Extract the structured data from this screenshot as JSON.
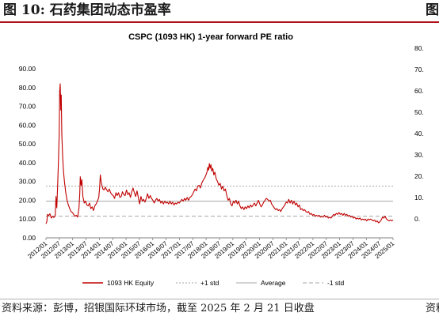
{
  "figure": {
    "title": "图 10: 石药集团动态市盈率",
    "source": "资料来源：彭博，招银国际环球市场，截至 2025 年 2 月 21 日收盘",
    "neighbor_title_fragment": "图",
    "neighbor_source_fragment": "资料"
  },
  "chart_data": {
    "type": "line",
    "title": "CSPC (1093 HK) 1-year forward PE ratio",
    "ylim": [
      0,
      90
    ],
    "y_ticks": [
      "0.00",
      "10.00",
      "20.00",
      "30.00",
      "40.00",
      "50.00",
      "60.00",
      "70.00",
      "80.00",
      "90.00"
    ],
    "x_ticks": [
      "2012/01",
      "2012/07",
      "2013/01",
      "2013/07",
      "2014/01",
      "2014/07",
      "2015/01",
      "2015/07",
      "2016/01",
      "2016/07",
      "2017/01",
      "2017/07",
      "2018/01",
      "2018/07",
      "2019/01",
      "2019/07",
      "2020/01",
      "2020/07",
      "2021/01",
      "2021/07",
      "2022/01",
      "2022/07",
      "2023/01",
      "2023/07",
      "2024/01",
      "2024/07",
      "2025/01"
    ],
    "x_range": [
      2012.0,
      2025.15
    ],
    "grid": false,
    "legend_position": "bottom",
    "series": [
      {
        "name": "1093 HK Equity",
        "color": "#c00000",
        "style": "solid",
        "points": [
          [
            2012.0,
            7.5
          ],
          [
            2012.03,
            8.5
          ],
          [
            2012.06,
            12.5
          ],
          [
            2012.1,
            11.8
          ],
          [
            2012.15,
            12.8
          ],
          [
            2012.2,
            10.5
          ],
          [
            2012.25,
            11.5
          ],
          [
            2012.3,
            10.8
          ],
          [
            2012.35,
            12.0
          ],
          [
            2012.38,
            22.0
          ],
          [
            2012.41,
            16.0
          ],
          [
            2012.44,
            27.5
          ],
          [
            2012.47,
            40.0
          ],
          [
            2012.5,
            55.0
          ],
          [
            2012.52,
            78.0
          ],
          [
            2012.54,
            82.0
          ],
          [
            2012.56,
            68.0
          ],
          [
            2012.58,
            76.0
          ],
          [
            2012.6,
            55.0
          ],
          [
            2012.63,
            44.0
          ],
          [
            2012.66,
            36.0
          ],
          [
            2012.7,
            30.0
          ],
          [
            2012.75,
            24.0
          ],
          [
            2012.8,
            20.0
          ],
          [
            2012.85,
            17.5
          ],
          [
            2012.9,
            15.5
          ],
          [
            2012.95,
            14.0
          ],
          [
            2013.0,
            13.5
          ],
          [
            2013.05,
            12.5
          ],
          [
            2013.1,
            11.5
          ],
          [
            2013.15,
            12.0
          ],
          [
            2013.2,
            11.0
          ],
          [
            2013.25,
            15.5
          ],
          [
            2013.28,
            23.0
          ],
          [
            2013.3,
            32.5
          ],
          [
            2013.33,
            28.0
          ],
          [
            2013.36,
            31.0
          ],
          [
            2013.4,
            22.0
          ],
          [
            2013.45,
            18.5
          ],
          [
            2013.5,
            19.5
          ],
          [
            2013.55,
            17.5
          ],
          [
            2013.6,
            17.0
          ],
          [
            2013.65,
            18.5
          ],
          [
            2013.7,
            15.5
          ],
          [
            2013.75,
            16.5
          ],
          [
            2013.8,
            14.5
          ],
          [
            2013.85,
            17.0
          ],
          [
            2013.9,
            18.0
          ],
          [
            2013.95,
            19.5
          ],
          [
            2014.0,
            21.5
          ],
          [
            2014.03,
            26.0
          ],
          [
            2014.06,
            33.5
          ],
          [
            2014.09,
            30.0
          ],
          [
            2014.12,
            28.0
          ],
          [
            2014.16,
            26.0
          ],
          [
            2014.2,
            25.5
          ],
          [
            2014.25,
            27.0
          ],
          [
            2014.3,
            25.5
          ],
          [
            2014.35,
            24.5
          ],
          [
            2014.4,
            26.0
          ],
          [
            2014.45,
            24.0
          ],
          [
            2014.5,
            23.0
          ],
          [
            2014.55,
            22.5
          ],
          [
            2014.6,
            21.0
          ],
          [
            2014.65,
            24.0
          ],
          [
            2014.7,
            22.5
          ],
          [
            2014.75,
            24.0
          ],
          [
            2014.8,
            21.5
          ],
          [
            2014.85,
            22.0
          ],
          [
            2014.9,
            24.5
          ],
          [
            2014.95,
            23.0
          ],
          [
            2015.0,
            22.5
          ],
          [
            2015.05,
            25.5
          ],
          [
            2015.1,
            23.0
          ],
          [
            2015.15,
            24.0
          ],
          [
            2015.2,
            21.5
          ],
          [
            2015.25,
            24.5
          ],
          [
            2015.3,
            26.5
          ],
          [
            2015.35,
            24.0
          ],
          [
            2015.4,
            22.0
          ],
          [
            2015.45,
            25.0
          ],
          [
            2015.5,
            21.5
          ],
          [
            2015.55,
            18.0
          ],
          [
            2015.6,
            22.0
          ],
          [
            2015.65,
            19.5
          ],
          [
            2015.7,
            20.5
          ],
          [
            2015.75,
            19.0
          ],
          [
            2015.8,
            21.0
          ],
          [
            2015.85,
            23.5
          ],
          [
            2015.9,
            21.0
          ],
          [
            2015.95,
            22.5
          ],
          [
            2016.0,
            21.0
          ],
          [
            2016.05,
            20.0
          ],
          [
            2016.1,
            18.5
          ],
          [
            2016.15,
            20.0
          ],
          [
            2016.2,
            21.0
          ],
          [
            2016.25,
            19.5
          ],
          [
            2016.3,
            20.5
          ],
          [
            2016.35,
            18.5
          ],
          [
            2016.4,
            19.5
          ],
          [
            2016.45,
            18.0
          ],
          [
            2016.5,
            19.5
          ],
          [
            2016.55,
            18.5
          ],
          [
            2016.6,
            19.0
          ],
          [
            2016.65,
            18.0
          ],
          [
            2016.7,
            19.5
          ],
          [
            2016.75,
            18.0
          ],
          [
            2016.8,
            19.0
          ],
          [
            2016.85,
            17.5
          ],
          [
            2016.9,
            18.5
          ],
          [
            2016.95,
            18.0
          ],
          [
            2017.0,
            19.0
          ],
          [
            2017.05,
            18.5
          ],
          [
            2017.1,
            19.5
          ],
          [
            2017.15,
            20.5
          ],
          [
            2017.2,
            19.5
          ],
          [
            2017.25,
            21.0
          ],
          [
            2017.3,
            20.0
          ],
          [
            2017.35,
            21.5
          ],
          [
            2017.4,
            20.0
          ],
          [
            2017.45,
            21.5
          ],
          [
            2017.5,
            22.0
          ],
          [
            2017.55,
            23.0
          ],
          [
            2017.6,
            24.5
          ],
          [
            2017.65,
            26.0
          ],
          [
            2017.7,
            25.0
          ],
          [
            2017.75,
            27.5
          ],
          [
            2017.8,
            28.0
          ],
          [
            2017.85,
            26.5
          ],
          [
            2017.9,
            29.0
          ],
          [
            2017.95,
            30.5
          ],
          [
            2018.0,
            31.5
          ],
          [
            2018.05,
            33.0
          ],
          [
            2018.1,
            35.0
          ],
          [
            2018.13,
            37.5
          ],
          [
            2018.16,
            36.0
          ],
          [
            2018.19,
            39.5
          ],
          [
            2018.22,
            37.0
          ],
          [
            2018.25,
            39.0
          ],
          [
            2018.28,
            35.5
          ],
          [
            2018.32,
            37.0
          ],
          [
            2018.36,
            33.5
          ],
          [
            2018.4,
            35.0
          ],
          [
            2018.45,
            31.5
          ],
          [
            2018.5,
            30.0
          ],
          [
            2018.55,
            28.0
          ],
          [
            2018.6,
            29.0
          ],
          [
            2018.65,
            26.0
          ],
          [
            2018.7,
            27.5
          ],
          [
            2018.75,
            25.0
          ],
          [
            2018.8,
            26.0
          ],
          [
            2018.85,
            22.5
          ],
          [
            2018.9,
            20.0
          ],
          [
            2018.95,
            21.0
          ],
          [
            2019.0,
            18.0
          ],
          [
            2019.05,
            17.0
          ],
          [
            2019.1,
            19.5
          ],
          [
            2019.15,
            18.5
          ],
          [
            2019.2,
            20.0
          ],
          [
            2019.25,
            18.0
          ],
          [
            2019.3,
            19.5
          ],
          [
            2019.35,
            17.0
          ],
          [
            2019.4,
            15.5
          ],
          [
            2019.45,
            16.5
          ],
          [
            2019.5,
            15.0
          ],
          [
            2019.55,
            16.5
          ],
          [
            2019.6,
            15.5
          ],
          [
            2019.65,
            17.0
          ],
          [
            2019.7,
            16.0
          ],
          [
            2019.75,
            17.5
          ],
          [
            2019.8,
            16.5
          ],
          [
            2019.85,
            17.5
          ],
          [
            2019.9,
            18.5
          ],
          [
            2019.95,
            17.0
          ],
          [
            2020.0,
            18.5
          ],
          [
            2020.05,
            20.0
          ],
          [
            2020.1,
            18.0
          ],
          [
            2020.15,
            16.5
          ],
          [
            2020.2,
            17.5
          ],
          [
            2020.25,
            19.0
          ],
          [
            2020.3,
            20.0
          ],
          [
            2020.35,
            21.0
          ],
          [
            2020.4,
            20.5
          ],
          [
            2020.45,
            19.5
          ],
          [
            2020.5,
            20.0
          ],
          [
            2020.55,
            18.0
          ],
          [
            2020.6,
            17.0
          ],
          [
            2020.65,
            16.0
          ],
          [
            2020.7,
            15.0
          ],
          [
            2020.75,
            15.5
          ],
          [
            2020.8,
            14.5
          ],
          [
            2020.85,
            15.0
          ],
          [
            2020.9,
            14.0
          ],
          [
            2020.95,
            15.5
          ],
          [
            2021.0,
            16.5
          ],
          [
            2021.05,
            17.5
          ],
          [
            2021.1,
            19.0
          ],
          [
            2021.15,
            18.5
          ],
          [
            2021.2,
            20.5
          ],
          [
            2021.25,
            18.5
          ],
          [
            2021.3,
            20.0
          ],
          [
            2021.35,
            18.0
          ],
          [
            2021.4,
            19.5
          ],
          [
            2021.45,
            17.5
          ],
          [
            2021.5,
            18.5
          ],
          [
            2021.55,
            16.5
          ],
          [
            2021.6,
            17.5
          ],
          [
            2021.65,
            15.0
          ],
          [
            2021.7,
            15.5
          ],
          [
            2021.75,
            14.5
          ],
          [
            2021.8,
            15.0
          ],
          [
            2021.85,
            14.0
          ],
          [
            2021.9,
            13.5
          ],
          [
            2021.95,
            14.0
          ],
          [
            2022.0,
            12.5
          ],
          [
            2022.05,
            13.0
          ],
          [
            2022.1,
            12.0
          ],
          [
            2022.15,
            12.5
          ],
          [
            2022.2,
            11.5
          ],
          [
            2022.25,
            12.0
          ],
          [
            2022.3,
            11.5
          ],
          [
            2022.35,
            12.0
          ],
          [
            2022.4,
            11.0
          ],
          [
            2022.45,
            11.5
          ],
          [
            2022.5,
            11.0
          ],
          [
            2022.55,
            12.0
          ],
          [
            2022.6,
            11.0
          ],
          [
            2022.65,
            11.5
          ],
          [
            2022.7,
            10.5
          ],
          [
            2022.75,
            11.0
          ],
          [
            2022.8,
            10.5
          ],
          [
            2022.85,
            11.5
          ],
          [
            2022.9,
            12.5
          ],
          [
            2022.95,
            12.0
          ],
          [
            2023.0,
            13.0
          ],
          [
            2023.05,
            12.5
          ],
          [
            2023.1,
            13.5
          ],
          [
            2023.15,
            12.5
          ],
          [
            2023.2,
            13.0
          ],
          [
            2023.25,
            12.0
          ],
          [
            2023.3,
            13.0
          ],
          [
            2023.35,
            12.0
          ],
          [
            2023.4,
            12.5
          ],
          [
            2023.45,
            11.5
          ],
          [
            2023.5,
            12.0
          ],
          [
            2023.55,
            11.0
          ],
          [
            2023.6,
            11.5
          ],
          [
            2023.65,
            10.5
          ],
          [
            2023.7,
            11.0
          ],
          [
            2023.75,
            10.0
          ],
          [
            2023.8,
            10.5
          ],
          [
            2023.85,
            10.0
          ],
          [
            2023.9,
            10.5
          ],
          [
            2023.95,
            9.5
          ],
          [
            2024.0,
            10.0
          ],
          [
            2024.05,
            9.5
          ],
          [
            2024.1,
            10.0
          ],
          [
            2024.15,
            9.0
          ],
          [
            2024.2,
            10.0
          ],
          [
            2024.25,
            9.5
          ],
          [
            2024.3,
            10.0
          ],
          [
            2024.35,
            9.5
          ],
          [
            2024.4,
            9.0
          ],
          [
            2024.45,
            9.5
          ],
          [
            2024.5,
            8.5
          ],
          [
            2024.55,
            9.0
          ],
          [
            2024.6,
            8.0
          ],
          [
            2024.65,
            8.5
          ],
          [
            2024.7,
            9.5
          ],
          [
            2024.75,
            11.0
          ],
          [
            2024.8,
            10.5
          ],
          [
            2024.85,
            11.5
          ],
          [
            2024.9,
            10.0
          ],
          [
            2024.95,
            9.5
          ],
          [
            2025.0,
            9.0
          ],
          [
            2025.05,
            9.5
          ],
          [
            2025.1,
            9.0
          ],
          [
            2025.15,
            9.5
          ]
        ]
      },
      {
        "name": "+1 std",
        "color": "#a6a6a6",
        "style": "dashed-fine",
        "constant": 27.5
      },
      {
        "name": "Average",
        "color": "#a6a6a6",
        "style": "solid",
        "constant": 19.5
      },
      {
        "name": "-1 std",
        "color": "#a6a6a6",
        "style": "dashed",
        "constant": 11.5
      }
    ],
    "right_axis_fragment_ticks": [
      "0.",
      "10.",
      "20.",
      "30.",
      "40.",
      "50.",
      "60.",
      "70.",
      "80."
    ]
  }
}
